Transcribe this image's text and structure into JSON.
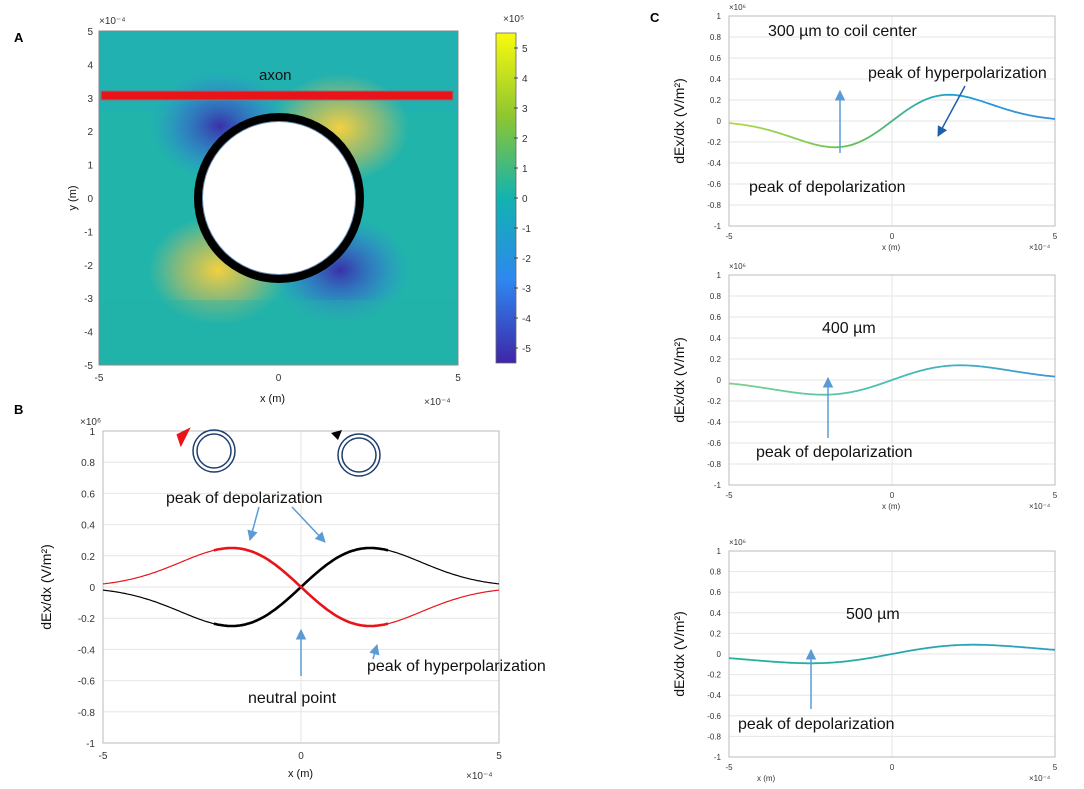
{
  "chart_data": [
    {
      "panel": "A",
      "type": "heatmap",
      "xlabel": "x (m)",
      "ylabel": "y (m)",
      "xlim": [
        -5,
        5
      ],
      "ylim": [
        -5,
        5
      ],
      "x_scale_label": "×10⁻⁴",
      "y_scale_label": "×10⁻⁴",
      "xticks": [
        "-5",
        "0",
        "5"
      ],
      "yticks": [
        "5",
        "4",
        "3",
        "2",
        "1",
        "0",
        "-1",
        "-2",
        "-3",
        "-4",
        "-5"
      ],
      "axon_label": "axon",
      "axon_y": 3,
      "coil_outer_radius": 2.5,
      "coil_inner_radius": 2.1,
      "colorbar": {
        "scale_label": "×10⁵",
        "range": [
          -5.5,
          5.5
        ],
        "ticks": [
          "5",
          "4",
          "3",
          "2",
          "1",
          "0",
          "-1",
          "-2",
          "-3",
          "-4",
          "-5"
        ]
      }
    },
    {
      "panel": "B",
      "type": "line",
      "xlabel": "x (m)",
      "ylabel": "dEx/dx (V/m²)",
      "xlim": [
        -5,
        5
      ],
      "ylim": [
        -1,
        1
      ],
      "x_scale_label": "×10⁻⁴",
      "y_scale_label": "×10⁶",
      "xticks": [
        "-5",
        "0",
        "5"
      ],
      "yticks": [
        "1",
        "0.8",
        "0.6",
        "0.4",
        "0.2",
        "0",
        "-0.2",
        "-0.4",
        "-0.6",
        "-0.8",
        "-1"
      ],
      "series": [
        {
          "name": "counter-clockwise coil",
          "color": "#000000",
          "amplitude": 0.25,
          "peak_x": -1.75
        },
        {
          "name": "clockwise coil",
          "color": "#e8141a",
          "amplitude": -0.25,
          "peak_x": -1.75
        }
      ],
      "annotations": [
        "peak of depolarization",
        "peak of hyperpolarization",
        "neutral point"
      ]
    },
    {
      "panel": "C",
      "type": "line",
      "subplots": [
        {
          "title": "300 µm to coil center",
          "amplitude": 0.25,
          "peak_x": -1.75,
          "annotations": [
            "peak of hyperpolarization",
            "peak of depolarization"
          ],
          "xlabel": "x (m)",
          "ylabel": "dEx/dx (V/m²)",
          "xlim": [
            -5,
            5
          ],
          "ylim": [
            -1,
            1
          ]
        },
        {
          "title": "400 µm",
          "amplitude": 0.14,
          "peak_x": -2.1,
          "annotations": [
            "peak of depolarization"
          ],
          "xlabel": "x (m)",
          "ylabel": "dEx/dx (V/m²)",
          "xlim": [
            -5,
            5
          ],
          "ylim": [
            -1,
            1
          ]
        },
        {
          "title": "500 µm",
          "amplitude": 0.09,
          "peak_x": -2.5,
          "annotations": [
            "peak of depolarization"
          ],
          "xlabel": "x (m)",
          "ylabel": "dEx/dx (V/m²)",
          "xlim": [
            -5,
            5
          ],
          "ylim": [
            -1,
            1
          ]
        }
      ],
      "x_scale_label": "×10⁻⁴",
      "y_scale_label": "×10⁶",
      "xticks": [
        "-5",
        "0",
        "5"
      ],
      "yticks": [
        "1",
        "0.8",
        "0.6",
        "0.4",
        "0.2",
        "0",
        "-0.2",
        "-0.4",
        "-0.6",
        "-0.8",
        "-1"
      ]
    }
  ],
  "panels": {
    "a": "A",
    "b": "B",
    "c": "C"
  },
  "colors": {
    "red": "#e8141a",
    "arrow": "#5a9bd5",
    "coil": "#1f3f6e"
  }
}
